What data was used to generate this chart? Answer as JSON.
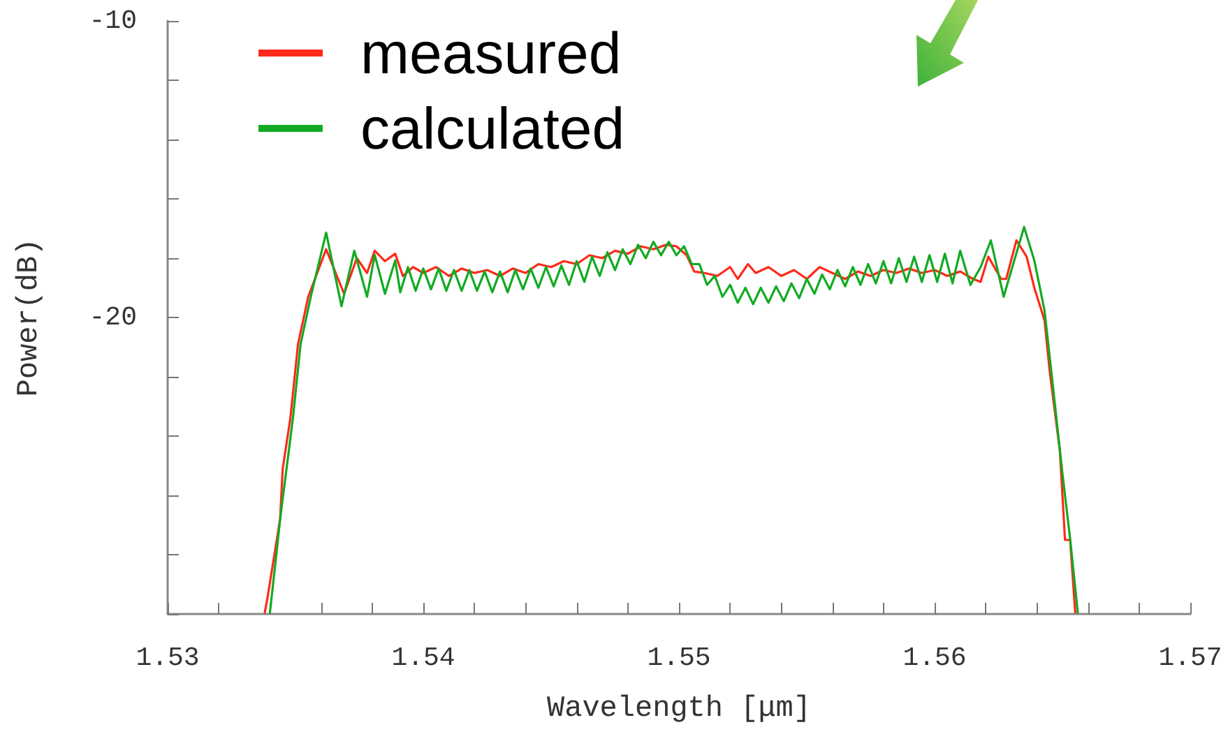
{
  "chart_data": {
    "type": "line",
    "xlabel": "Wavelength [μm]",
    "ylabel": "Power(dB)",
    "xlim": [
      1.53,
      1.57
    ],
    "xticks": [
      1.53,
      {
        "value": 1.532,
        "label": null
      },
      {
        "value": 1.534,
        "label": null
      },
      {
        "value": 1.536,
        "label": null
      },
      {
        "value": 1.538,
        "label": null
      },
      1.54,
      {
        "value": 1.542,
        "label": null
      },
      {
        "value": 1.544,
        "label": null
      },
      {
        "value": 1.546,
        "label": null
      },
      {
        "value": 1.548,
        "label": null
      },
      1.55,
      {
        "value": 1.552,
        "label": null
      },
      {
        "value": 1.554,
        "label": null
      },
      {
        "value": 1.556,
        "label": null
      },
      {
        "value": 1.558,
        "label": null
      },
      1.56,
      {
        "value": 1.562,
        "label": null
      },
      {
        "value": 1.564,
        "label": null
      },
      {
        "value": 1.566,
        "label": null
      },
      {
        "value": 1.568,
        "label": null
      },
      1.57
    ],
    "ylim": [
      -30,
      -10
    ],
    "yticks": [
      -10,
      {
        "value": -12,
        "label": null
      },
      {
        "value": -14,
        "label": null
      },
      {
        "value": -16,
        "label": null
      },
      {
        "value": -18,
        "label": null
      },
      -20,
      {
        "value": -22,
        "label": null
      },
      {
        "value": -24,
        "label": null
      },
      {
        "value": -26,
        "label": null
      },
      {
        "value": -28,
        "label": null
      },
      {
        "value": -30,
        "label": null
      }
    ],
    "grid": false,
    "legend": "top left",
    "marker": "none",
    "line_style": "solid",
    "series": [
      {
        "name": "measured",
        "color": "#ff2a1a",
        "x": [
          1.5338,
          1.5339,
          1.5344,
          1.5345,
          1.5348,
          1.5351,
          1.5355,
          1.5362,
          1.5369,
          1.5374,
          1.5378,
          1.5381,
          1.5385,
          1.5389,
          1.5392,
          1.5396,
          1.54,
          1.5405,
          1.541,
          1.5415,
          1.542,
          1.5425,
          1.543,
          1.5435,
          1.544,
          1.5445,
          1.545,
          1.5455,
          1.546,
          1.5465,
          1.547,
          1.5475,
          1.548,
          1.5485,
          1.549,
          1.5495,
          1.5499,
          1.5503,
          1.5506,
          1.551,
          1.5515,
          1.552,
          1.5523,
          1.5527,
          1.553,
          1.5535,
          1.554,
          1.5545,
          1.555,
          1.5555,
          1.556,
          1.5565,
          1.557,
          1.5575,
          1.558,
          1.5585,
          1.559,
          1.5595,
          1.56,
          1.5605,
          1.561,
          1.5615,
          1.5618,
          1.5621,
          1.5626,
          1.5628,
          1.5632,
          1.5636,
          1.5639,
          1.5643,
          1.5645,
          1.5649,
          1.5651,
          1.5653,
          1.5655
        ],
        "values": [
          -29.95,
          -29.48,
          -26.8,
          -25.1,
          -23.4,
          -20.9,
          -19.3,
          -17.7,
          -19.2,
          -18.0,
          -18.5,
          -17.75,
          -18.1,
          -17.85,
          -18.6,
          -18.3,
          -18.5,
          -18.3,
          -18.6,
          -18.35,
          -18.5,
          -18.4,
          -18.6,
          -18.35,
          -18.5,
          -18.2,
          -18.3,
          -18.1,
          -18.2,
          -17.9,
          -18.0,
          -17.75,
          -17.85,
          -17.6,
          -17.7,
          -17.55,
          -17.6,
          -17.9,
          -18.45,
          -18.5,
          -18.6,
          -18.3,
          -18.7,
          -18.2,
          -18.5,
          -18.3,
          -18.6,
          -18.4,
          -18.7,
          -18.3,
          -18.5,
          -18.7,
          -18.45,
          -18.6,
          -18.4,
          -18.5,
          -18.35,
          -18.5,
          -18.4,
          -18.6,
          -18.45,
          -18.7,
          -18.8,
          -17.95,
          -18.7,
          -18.7,
          -17.4,
          -17.95,
          -19.0,
          -20.1,
          -21.8,
          -24.5,
          -27.5,
          -27.5,
          -29.95
        ]
      },
      {
        "name": "calculated",
        "color": "#12aa22",
        "x": [
          1.534,
          1.5342,
          1.5344,
          1.5349,
          1.5352,
          1.5356,
          1.5362,
          1.5368,
          1.5373,
          1.5378,
          1.5381,
          1.5385,
          1.5389,
          1.5391,
          1.5394,
          1.5397,
          1.54,
          1.5403,
          1.5406,
          1.5409,
          1.5412,
          1.5415,
          1.5418,
          1.5421,
          1.5424,
          1.5427,
          1.543,
          1.5433,
          1.5436,
          1.5439,
          1.5442,
          1.5445,
          1.5448,
          1.5451,
          1.5454,
          1.5457,
          1.546,
          1.5463,
          1.5466,
          1.5469,
          1.5472,
          1.5475,
          1.5478,
          1.5481,
          1.5484,
          1.5487,
          1.549,
          1.5493,
          1.5496,
          1.5499,
          1.5502,
          1.5505,
          1.5508,
          1.5511,
          1.5514,
          1.5517,
          1.552,
          1.5523,
          1.5526,
          1.5529,
          1.5532,
          1.5535,
          1.5538,
          1.5541,
          1.5544,
          1.5547,
          1.555,
          1.5553,
          1.5556,
          1.5559,
          1.5562,
          1.5565,
          1.5568,
          1.5571,
          1.5574,
          1.5577,
          1.558,
          1.5583,
          1.5586,
          1.5589,
          1.5592,
          1.5595,
          1.5598,
          1.5601,
          1.5604,
          1.5607,
          1.561,
          1.5614,
          1.5618,
          1.5622,
          1.5627,
          1.5635,
          1.5639,
          1.5643,
          1.5646,
          1.565,
          1.5653,
          1.5656
        ],
        "values": [
          -29.95,
          -28.4,
          -26.8,
          -23.4,
          -20.9,
          -19.3,
          -17.14,
          -19.62,
          -17.75,
          -19.3,
          -17.89,
          -19.2,
          -18.08,
          -19.15,
          -18.3,
          -19.1,
          -18.35,
          -19.05,
          -18.35,
          -19.1,
          -18.4,
          -19.1,
          -18.4,
          -19.1,
          -18.45,
          -19.15,
          -18.45,
          -19.15,
          -18.4,
          -19.05,
          -18.35,
          -19.0,
          -18.3,
          -18.95,
          -18.25,
          -18.9,
          -18.1,
          -18.8,
          -17.95,
          -18.6,
          -17.8,
          -18.4,
          -17.7,
          -18.2,
          -17.55,
          -18.0,
          -17.45,
          -17.9,
          -17.45,
          -17.9,
          -17.6,
          -18.2,
          -18.2,
          -18.9,
          -18.6,
          -19.3,
          -18.9,
          -19.5,
          -19.0,
          -19.55,
          -19.0,
          -19.5,
          -18.95,
          -19.45,
          -18.85,
          -19.35,
          -18.7,
          -19.2,
          -18.55,
          -19.05,
          -18.4,
          -18.95,
          -18.3,
          -18.9,
          -18.2,
          -18.85,
          -18.1,
          -18.85,
          -18.0,
          -18.8,
          -17.95,
          -18.8,
          -17.9,
          -18.8,
          -17.85,
          -18.85,
          -17.75,
          -18.9,
          -18.3,
          -17.4,
          -19.3,
          -16.95,
          -18.08,
          -19.77,
          -22.1,
          -25.26,
          -27.46,
          -29.95
        ]
      }
    ]
  }
}
